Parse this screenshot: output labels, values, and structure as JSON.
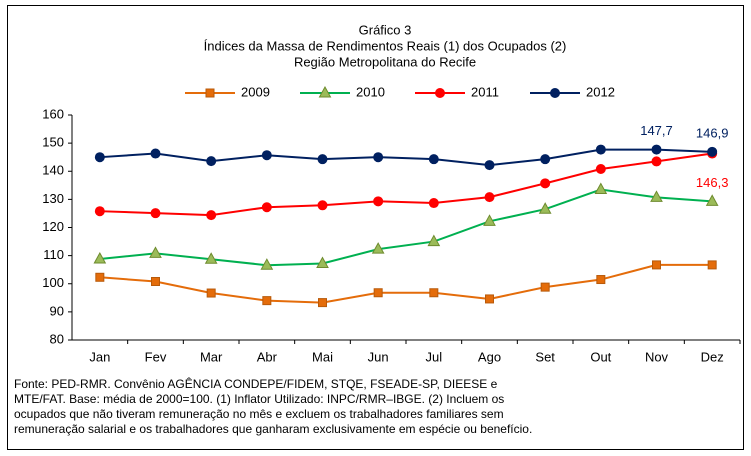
{
  "chart_data": {
    "type": "line",
    "title": [
      "Gráfico 3",
      "Índices da Massa de Rendimentos  Reais  (1) dos Ocupados  (2)",
      "Região Metropolitana do Recife"
    ],
    "categories": [
      "Jan",
      "Fev",
      "Mar",
      "Abr",
      "Mai",
      "Jun",
      "Jul",
      "Ago",
      "Set",
      "Out",
      "Nov",
      "Dez"
    ],
    "series": [
      {
        "name": "2009",
        "color": "#E46C0A",
        "marker": "square",
        "values": [
          102.3,
          100.8,
          96.7,
          94.0,
          93.3,
          96.8,
          96.8,
          94.6,
          98.8,
          101.5,
          106.7,
          106.7
        ]
      },
      {
        "name": "2010",
        "color": "#00B050",
        "marker": "triangle",
        "values": [
          108.8,
          110.8,
          108.7,
          106.6,
          107.2,
          112.3,
          115.0,
          122.2,
          126.5,
          133.5,
          130.7,
          129.3
        ]
      },
      {
        "name": "2011",
        "color": "#FF0000",
        "marker": "circle",
        "values": [
          125.8,
          125.1,
          124.4,
          127.2,
          127.9,
          129.3,
          128.7,
          130.8,
          135.7,
          140.8,
          143.5,
          146.3
        ],
        "value_labels": [
          null,
          null,
          null,
          null,
          null,
          null,
          null,
          null,
          null,
          null,
          null,
          "146,3"
        ]
      },
      {
        "name": "2012",
        "color": "#002060",
        "marker": "circle",
        "values": [
          145.0,
          146.3,
          143.6,
          145.7,
          144.3,
          145.0,
          144.3,
          142.2,
          144.3,
          147.7,
          147.7,
          146.9
        ],
        "value_labels": [
          null,
          null,
          null,
          null,
          null,
          null,
          null,
          null,
          null,
          null,
          "147,7",
          "146,9"
        ]
      }
    ],
    "ylim": [
      80,
      160
    ],
    "yticks": [
      80,
      90,
      100,
      110,
      120,
      130,
      140,
      150,
      160
    ],
    "grid": false,
    "legend": "top",
    "note": [
      "Fonte: PED-RMR. Convênio  AGÊNCIA CONDEPE/FIDEM, STQE, FSEADE-SP, DIEESE e",
      "MTE/FAT. Base: média de 2000=100.  (1) Inflator Utilizado: INPC/RMR–IBGE.  (2) Incluem os",
      "ocupados  que não tiveram remuneração  no mês e excluem  os trabalhadores familiares sem",
      "remuneração  salarial e os trabalhadores  que ganharam exclusivamente   em espécie ou benefício."
    ]
  }
}
